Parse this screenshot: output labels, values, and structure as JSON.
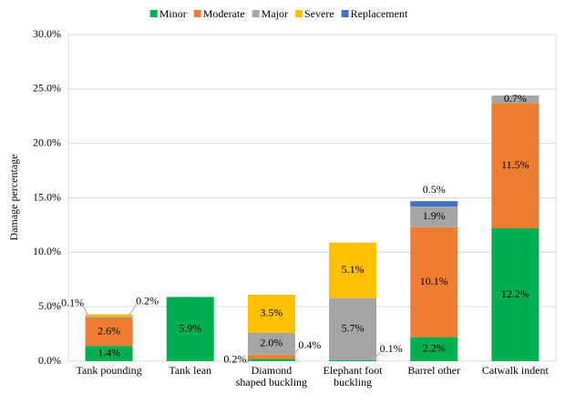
{
  "chart_data": {
    "type": "stacked_bar",
    "y_label": "Damage percentage",
    "categories": [
      "Tank pounding",
      "Tank lean",
      "Diamond shaped buckling",
      "Elephant foot buckling",
      "Barrel other",
      "Catwalk indent"
    ],
    "series": [
      {
        "name": "Minor",
        "color": "#00b050",
        "values": [
          1.4,
          5.9,
          0.2,
          0.1,
          2.2,
          12.2
        ],
        "value_labels": [
          "1.4%",
          "5.9%",
          "0.2%",
          "0.1%",
          "2.2%",
          "12.2%"
        ]
      },
      {
        "name": "Moderate",
        "color": "#ed7d31",
        "values": [
          2.6,
          0,
          0.4,
          0,
          10.1,
          11.5
        ],
        "value_labels": [
          "2.6%",
          null,
          "0.4%",
          null,
          "10.1%",
          "11.5%"
        ]
      },
      {
        "name": "Major",
        "color": "#a5a5a5",
        "values": [
          0.1,
          0,
          2.0,
          5.7,
          1.9,
          0.7
        ],
        "value_labels": [
          "0.1%",
          null,
          "2.0%",
          "5.7%",
          "1.9%",
          "0.7%"
        ]
      },
      {
        "name": "Severe",
        "color": "#ffc000",
        "values": [
          0.2,
          0,
          3.5,
          5.1,
          0,
          0
        ],
        "value_labels": [
          "0.2%",
          null,
          "3.5%",
          "5.1%",
          null,
          null
        ]
      },
      {
        "name": "Replacement",
        "color": "#4472c4",
        "values": [
          0,
          0,
          0,
          0,
          0.5,
          0
        ],
        "value_labels": [
          null,
          null,
          null,
          null,
          "0.5%",
          null
        ]
      }
    ],
    "ylim": [
      0,
      30
    ],
    "yticks": [
      {
        "value": 0,
        "label": "0.0%"
      },
      {
        "value": 5,
        "label": "5.0%"
      },
      {
        "value": 10,
        "label": "10.0%"
      },
      {
        "value": 15,
        "label": "15.0%"
      },
      {
        "value": 20,
        "label": "20.0%"
      },
      {
        "value": 25,
        "label": "25.0%"
      },
      {
        "value": 30,
        "label": "30.0%"
      }
    ],
    "legend": "top"
  }
}
